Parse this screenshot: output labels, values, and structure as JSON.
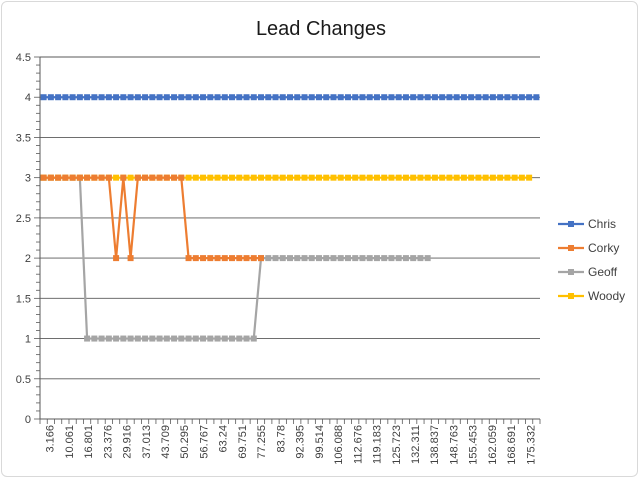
{
  "chart_data": {
    "type": "line",
    "title": "Lead Changes",
    "xlabel": "",
    "ylabel": "",
    "ylim": [
      0,
      4.5
    ],
    "yticks": [
      "0",
      "0.5",
      "1",
      "1.5",
      "2",
      "2.5",
      "3",
      "3.5",
      "4",
      "4.5"
    ],
    "grid": true,
    "legend_position": "right",
    "x_tick_labels": [
      "3.166",
      "10.061",
      "16.801",
      "23.376",
      "29.916",
      "37.013",
      "43.709",
      "50.295",
      "56.767",
      "63.24",
      "69.751",
      "77.255",
      "83.78",
      "92.395",
      "99.514",
      "106.088",
      "112.676",
      "119.183",
      "125.723",
      "132.311",
      "138.837",
      "148.763",
      "155.453",
      "162.059",
      "168.691",
      "175.332"
    ],
    "point_count": 69,
    "series": [
      {
        "name": "Chris",
        "color": "#4472c4",
        "values": [
          4,
          4,
          4,
          4,
          4,
          4,
          4,
          4,
          4,
          4,
          4,
          4,
          4,
          4,
          4,
          4,
          4,
          4,
          4,
          4,
          4,
          4,
          4,
          4,
          4,
          4,
          4,
          4,
          4,
          4,
          4,
          4,
          4,
          4,
          4,
          4,
          4,
          4,
          4,
          4,
          4,
          4,
          4,
          4,
          4,
          4,
          4,
          4,
          4,
          4,
          4,
          4,
          4,
          4,
          4,
          4,
          4,
          4,
          4,
          4,
          4,
          4,
          4,
          4,
          4,
          4,
          4,
          4,
          4
        ]
      },
      {
        "name": "Corky",
        "color": "#ed7d31",
        "values": [
          3,
          3,
          3,
          3,
          3,
          3,
          3,
          3,
          3,
          3,
          2,
          3,
          2,
          3,
          3,
          3,
          3,
          3,
          3,
          3,
          2,
          2,
          2,
          2,
          2,
          2,
          2,
          2,
          2,
          2,
          2
        ]
      },
      {
        "name": "Geoff",
        "color": "#a5a5a5",
        "values": [
          3,
          3,
          3,
          3,
          3,
          3,
          1,
          1,
          1,
          1,
          1,
          1,
          1,
          1,
          1,
          1,
          1,
          1,
          1,
          1,
          1,
          1,
          1,
          1,
          1,
          1,
          1,
          1,
          1,
          1,
          2,
          2,
          2,
          2,
          2,
          2,
          2,
          2,
          2,
          2,
          2,
          2,
          2,
          2,
          2,
          2,
          2,
          2,
          2,
          2,
          2,
          2,
          2,
          2
        ]
      },
      {
        "name": "Woody",
        "color": "#ffc000",
        "values": [
          3,
          3,
          3,
          3,
          3,
          3,
          3,
          3,
          3,
          3,
          3,
          3,
          3,
          3,
          3,
          3,
          3,
          3,
          3,
          3,
          3,
          3,
          3,
          3,
          3,
          3,
          3,
          3,
          3,
          3,
          3,
          3,
          3,
          3,
          3,
          3,
          3,
          3,
          3,
          3,
          3,
          3,
          3,
          3,
          3,
          3,
          3,
          3,
          3,
          3,
          3,
          3,
          3,
          3,
          3,
          3,
          3,
          3,
          3,
          3,
          3,
          3,
          3,
          3,
          3,
          3,
          3,
          3
        ]
      }
    ]
  }
}
